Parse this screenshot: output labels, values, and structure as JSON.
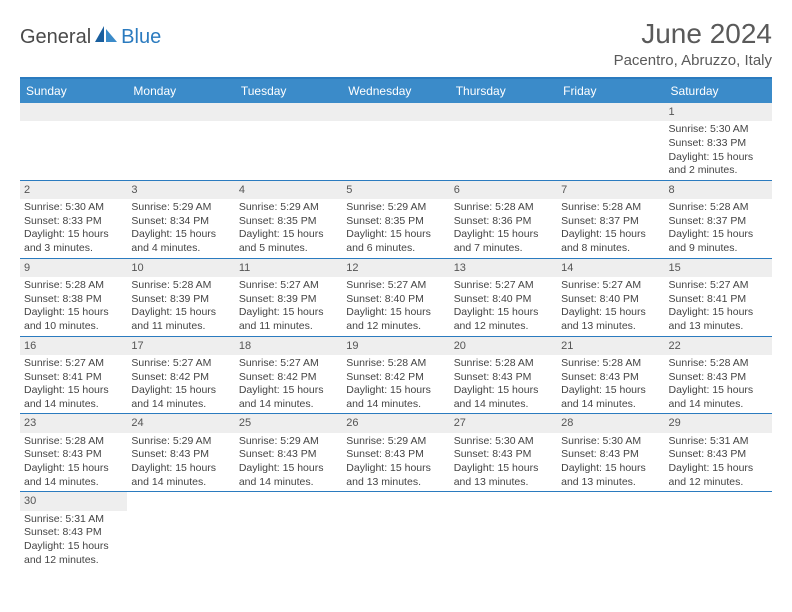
{
  "logo": {
    "part1": "General",
    "part2": "Blue"
  },
  "title": "June 2024",
  "location": "Pacentro, Abruzzo, Italy",
  "colors": {
    "header_bg": "#3b8bc9",
    "border": "#2b7bbf",
    "daynum_bg": "#eeeeee",
    "text": "#444444"
  },
  "weekdays": [
    "Sunday",
    "Monday",
    "Tuesday",
    "Wednesday",
    "Thursday",
    "Friday",
    "Saturday"
  ],
  "weeks": [
    [
      null,
      null,
      null,
      null,
      null,
      null,
      {
        "n": "1",
        "sr": "Sunrise: 5:30 AM",
        "ss": "Sunset: 8:33 PM",
        "dl": "Daylight: 15 hours and 2 minutes."
      }
    ],
    [
      {
        "n": "2",
        "sr": "Sunrise: 5:30 AM",
        "ss": "Sunset: 8:33 PM",
        "dl": "Daylight: 15 hours and 3 minutes."
      },
      {
        "n": "3",
        "sr": "Sunrise: 5:29 AM",
        "ss": "Sunset: 8:34 PM",
        "dl": "Daylight: 15 hours and 4 minutes."
      },
      {
        "n": "4",
        "sr": "Sunrise: 5:29 AM",
        "ss": "Sunset: 8:35 PM",
        "dl": "Daylight: 15 hours and 5 minutes."
      },
      {
        "n": "5",
        "sr": "Sunrise: 5:29 AM",
        "ss": "Sunset: 8:35 PM",
        "dl": "Daylight: 15 hours and 6 minutes."
      },
      {
        "n": "6",
        "sr": "Sunrise: 5:28 AM",
        "ss": "Sunset: 8:36 PM",
        "dl": "Daylight: 15 hours and 7 minutes."
      },
      {
        "n": "7",
        "sr": "Sunrise: 5:28 AM",
        "ss": "Sunset: 8:37 PM",
        "dl": "Daylight: 15 hours and 8 minutes."
      },
      {
        "n": "8",
        "sr": "Sunrise: 5:28 AM",
        "ss": "Sunset: 8:37 PM",
        "dl": "Daylight: 15 hours and 9 minutes."
      }
    ],
    [
      {
        "n": "9",
        "sr": "Sunrise: 5:28 AM",
        "ss": "Sunset: 8:38 PM",
        "dl": "Daylight: 15 hours and 10 minutes."
      },
      {
        "n": "10",
        "sr": "Sunrise: 5:28 AM",
        "ss": "Sunset: 8:39 PM",
        "dl": "Daylight: 15 hours and 11 minutes."
      },
      {
        "n": "11",
        "sr": "Sunrise: 5:27 AM",
        "ss": "Sunset: 8:39 PM",
        "dl": "Daylight: 15 hours and 11 minutes."
      },
      {
        "n": "12",
        "sr": "Sunrise: 5:27 AM",
        "ss": "Sunset: 8:40 PM",
        "dl": "Daylight: 15 hours and 12 minutes."
      },
      {
        "n": "13",
        "sr": "Sunrise: 5:27 AM",
        "ss": "Sunset: 8:40 PM",
        "dl": "Daylight: 15 hours and 12 minutes."
      },
      {
        "n": "14",
        "sr": "Sunrise: 5:27 AM",
        "ss": "Sunset: 8:40 PM",
        "dl": "Daylight: 15 hours and 13 minutes."
      },
      {
        "n": "15",
        "sr": "Sunrise: 5:27 AM",
        "ss": "Sunset: 8:41 PM",
        "dl": "Daylight: 15 hours and 13 minutes."
      }
    ],
    [
      {
        "n": "16",
        "sr": "Sunrise: 5:27 AM",
        "ss": "Sunset: 8:41 PM",
        "dl": "Daylight: 15 hours and 14 minutes."
      },
      {
        "n": "17",
        "sr": "Sunrise: 5:27 AM",
        "ss": "Sunset: 8:42 PM",
        "dl": "Daylight: 15 hours and 14 minutes."
      },
      {
        "n": "18",
        "sr": "Sunrise: 5:27 AM",
        "ss": "Sunset: 8:42 PM",
        "dl": "Daylight: 15 hours and 14 minutes."
      },
      {
        "n": "19",
        "sr": "Sunrise: 5:28 AM",
        "ss": "Sunset: 8:42 PM",
        "dl": "Daylight: 15 hours and 14 minutes."
      },
      {
        "n": "20",
        "sr": "Sunrise: 5:28 AM",
        "ss": "Sunset: 8:43 PM",
        "dl": "Daylight: 15 hours and 14 minutes."
      },
      {
        "n": "21",
        "sr": "Sunrise: 5:28 AM",
        "ss": "Sunset: 8:43 PM",
        "dl": "Daylight: 15 hours and 14 minutes."
      },
      {
        "n": "22",
        "sr": "Sunrise: 5:28 AM",
        "ss": "Sunset: 8:43 PM",
        "dl": "Daylight: 15 hours and 14 minutes."
      }
    ],
    [
      {
        "n": "23",
        "sr": "Sunrise: 5:28 AM",
        "ss": "Sunset: 8:43 PM",
        "dl": "Daylight: 15 hours and 14 minutes."
      },
      {
        "n": "24",
        "sr": "Sunrise: 5:29 AM",
        "ss": "Sunset: 8:43 PM",
        "dl": "Daylight: 15 hours and 14 minutes."
      },
      {
        "n": "25",
        "sr": "Sunrise: 5:29 AM",
        "ss": "Sunset: 8:43 PM",
        "dl": "Daylight: 15 hours and 14 minutes."
      },
      {
        "n": "26",
        "sr": "Sunrise: 5:29 AM",
        "ss": "Sunset: 8:43 PM",
        "dl": "Daylight: 15 hours and 13 minutes."
      },
      {
        "n": "27",
        "sr": "Sunrise: 5:30 AM",
        "ss": "Sunset: 8:43 PM",
        "dl": "Daylight: 15 hours and 13 minutes."
      },
      {
        "n": "28",
        "sr": "Sunrise: 5:30 AM",
        "ss": "Sunset: 8:43 PM",
        "dl": "Daylight: 15 hours and 13 minutes."
      },
      {
        "n": "29",
        "sr": "Sunrise: 5:31 AM",
        "ss": "Sunset: 8:43 PM",
        "dl": "Daylight: 15 hours and 12 minutes."
      }
    ],
    [
      {
        "n": "30",
        "sr": "Sunrise: 5:31 AM",
        "ss": "Sunset: 8:43 PM",
        "dl": "Daylight: 15 hours and 12 minutes."
      },
      null,
      null,
      null,
      null,
      null,
      null
    ]
  ]
}
